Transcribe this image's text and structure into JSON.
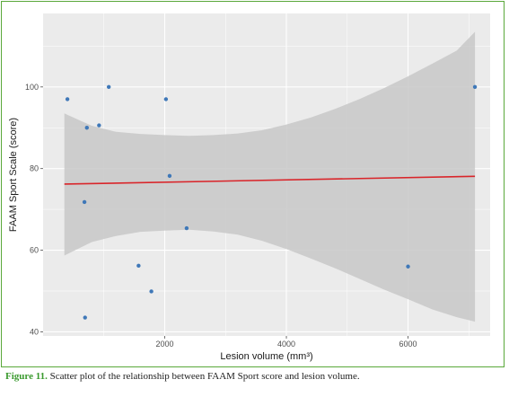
{
  "chart_data": {
    "type": "scatter",
    "xlabel": "Lesion volume (mm³)",
    "ylabel": "FAAM Sport Scale (score)",
    "xlim": [
      0,
      7350
    ],
    "ylim": [
      39,
      118
    ],
    "x_ticks": [
      2000,
      4000,
      6000
    ],
    "y_ticks": [
      40,
      60,
      80,
      100
    ],
    "grid": true,
    "points": [
      {
        "x": 400,
        "y": 97
      },
      {
        "x": 1080,
        "y": 100
      },
      {
        "x": 720,
        "y": 90
      },
      {
        "x": 920,
        "y": 90.6
      },
      {
        "x": 2020,
        "y": 97
      },
      {
        "x": 2080,
        "y": 78.2
      },
      {
        "x": 680,
        "y": 71.8
      },
      {
        "x": 2360,
        "y": 65.4
      },
      {
        "x": 1570,
        "y": 56.2
      },
      {
        "x": 1780,
        "y": 49.9
      },
      {
        "x": 690,
        "y": 43.5
      },
      {
        "x": 6000,
        "y": 56
      },
      {
        "x": 7100,
        "y": 100
      }
    ],
    "fit_line": {
      "x": [
        350,
        7100
      ],
      "y": [
        76.2,
        78.1
      ]
    },
    "confidence_band": {
      "x": [
        350,
        800,
        1200,
        1600,
        2000,
        2400,
        2800,
        3200,
        3600,
        4000,
        4400,
        4800,
        5200,
        5600,
        6000,
        6400,
        6800,
        7100
      ],
      "upper": [
        93.5,
        90.5,
        89.0,
        88.5,
        88.2,
        88.0,
        88.2,
        88.6,
        89.4,
        90.8,
        92.5,
        94.6,
        97.0,
        99.7,
        102.6,
        105.7,
        108.9,
        113.5
      ],
      "lower": [
        58.7,
        62.0,
        63.5,
        64.5,
        64.8,
        65.0,
        64.6,
        63.8,
        62.3,
        60.3,
        58.0,
        55.6,
        53.0,
        50.4,
        48.0,
        45.5,
        43.6,
        42.5
      ]
    },
    "colors": {
      "panel": "#ebebeb",
      "grid": "#ffffff",
      "point": "#3f78b8",
      "line": "#d9252a",
      "band": "#c8c8c8"
    }
  },
  "caption": {
    "figure_label": "Figure 11.",
    "text": " Scatter plot of the relationship between FAAM Sport score and lesion volume."
  }
}
